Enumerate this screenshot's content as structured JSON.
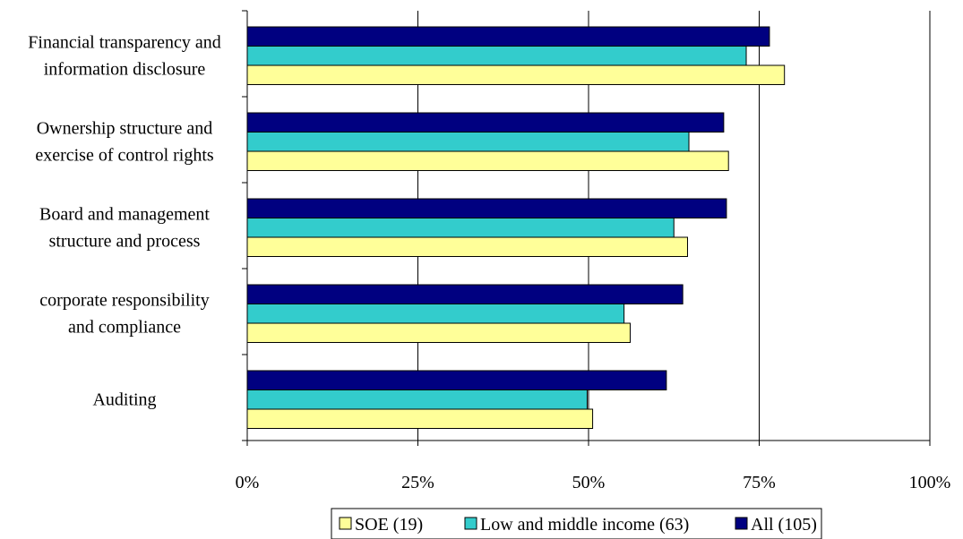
{
  "chart_data": {
    "type": "bar",
    "orientation": "horizontal",
    "categories": [
      "Financial transparency and information disclosure",
      "Ownership structure and exercise of control rights",
      "Board and management structure and process",
      "corporate responsibility and compliance",
      "Auditing"
    ],
    "category_label_lines": [
      [
        "Financial transparency and",
        "information disclosure"
      ],
      [
        "Ownership structure and",
        "exercise of control rights"
      ],
      [
        "Board and management",
        "structure and process"
      ],
      [
        "corporate responsibility",
        "and compliance"
      ],
      [
        "Auditing"
      ]
    ],
    "series": [
      {
        "name": "All (105)",
        "color": "#000080",
        "values": [
          76.5,
          69.8,
          70.2,
          63.8,
          61.4
        ]
      },
      {
        "name": "Low and middle income (63)",
        "color": "#33CCCC",
        "values": [
          73.1,
          64.7,
          62.5,
          55.2,
          49.8
        ]
      },
      {
        "name": "SOE (19)",
        "color": "#FFFF99",
        "values": [
          78.7,
          70.5,
          64.5,
          56.1,
          50.6
        ]
      }
    ],
    "legend_order": [
      "SOE (19)",
      "Low and middle income (63)",
      "All (105)"
    ],
    "x_ticks": [
      0,
      25,
      50,
      75,
      100
    ],
    "x_tick_labels": [
      "0%",
      "25%",
      "50%",
      "75%",
      "100%"
    ],
    "xlim": [
      0,
      100
    ],
    "grid": "vertical gridlines",
    "legend_position": "bottom",
    "title": "",
    "xlabel": "",
    "ylabel": ""
  }
}
